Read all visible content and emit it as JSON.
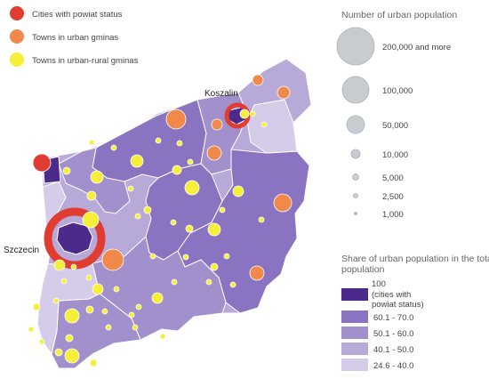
{
  "legend_types": {
    "items": [
      {
        "label": "Cities with powiat status",
        "color": "#e03c31"
      },
      {
        "label": "Towns in urban gminas",
        "color": "#f0894a"
      },
      {
        "label": "Towns in urban-rural gminas",
        "color": "#f5ef3a"
      }
    ]
  },
  "legend_population": {
    "title": "Number of urban population",
    "items": [
      {
        "label": "200,000 and more"
      },
      {
        "label": "100,000"
      },
      {
        "label": "50,000"
      },
      {
        "label": "10,000"
      },
      {
        "label": "5,000"
      },
      {
        "label": "2,500"
      },
      {
        "label": "1,000"
      }
    ],
    "circle_color": "#c8cbd0"
  },
  "legend_share": {
    "title_line1": "Share of urban population in the total",
    "title_line2": "population",
    "items": [
      {
        "label_lines": [
          "100",
          "(cities with",
          "powiat status)"
        ],
        "color": "#4b2a8c"
      },
      {
        "label_lines": [
          "60.1 - 70.0"
        ],
        "color": "#8a73c0"
      },
      {
        "label_lines": [
          "50.1 - 60.0"
        ],
        "color": "#a190cc"
      },
      {
        "label_lines": [
          "40.1 - 50.0"
        ],
        "color": "#b7aad8"
      },
      {
        "label_lines": [
          "24.6 - 40.0"
        ],
        "color": "#d4cce8"
      }
    ]
  },
  "cities": {
    "koszalin": "Koszalin",
    "szczecin": "Szczecin"
  }
}
